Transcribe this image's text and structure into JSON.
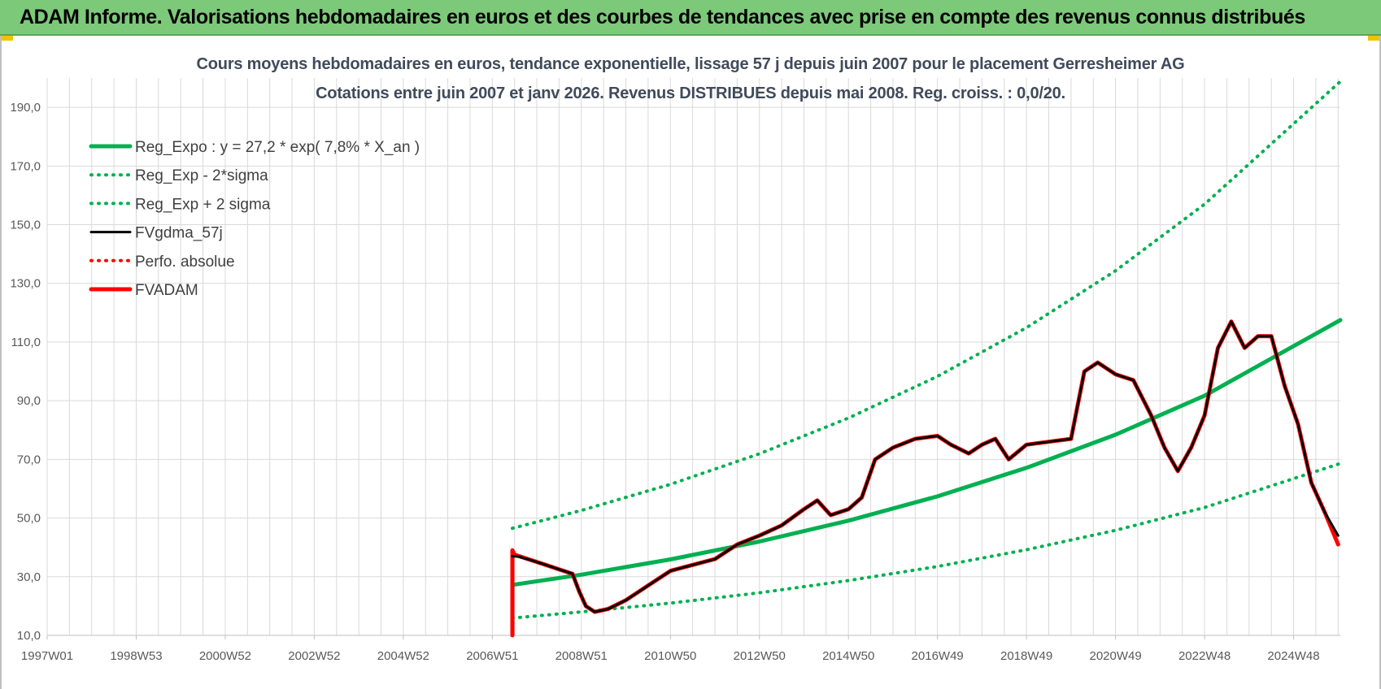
{
  "banner": {
    "title": "ADAM Informe. Valorisations hebdomadaires en euros et des courbes de tendances avec prise en compte des revenus connus distribués"
  },
  "colors": {
    "banner_bg": "#7dc97a",
    "green": "#00b050",
    "red": "#ff0000",
    "black": "#000000",
    "grid": "#d9d9d9"
  },
  "chart_data": {
    "type": "line",
    "title_line1": "Cours moyens hebdomadaires en euros, tendance exponentielle, lissage 57 j depuis juin 2007 pour le placement Gerresheimer AG",
    "title_line2": "Cotations entre juin 2007 et janv 2026.  Revenus DISTRIBUES  depuis mai 2008. Reg.  croiss. : 0,0/20.",
    "xlabel": "",
    "ylabel": "",
    "ylim": [
      10,
      200
    ],
    "y_ticks": [
      "10,0",
      "30,0",
      "50,0",
      "70,0",
      "90,0",
      "110,0",
      "130,0",
      "150,0",
      "170,0",
      "190,0"
    ],
    "x_ticks": [
      "1997W01",
      "1998W53",
      "2000W52",
      "2002W52",
      "2004W52",
      "2006W51",
      "2008W51",
      "2010W50",
      "2012W50",
      "2014W50",
      "2016W49",
      "2018W49",
      "2020W49",
      "2022W48",
      "2024W48"
    ],
    "x_range": [
      1997.0,
      2026.05
    ],
    "grid": true,
    "legend_position": "top-left",
    "series": [
      {
        "name": "Reg_Expo : y = 27,2 * exp( 7,8% *  X_an )",
        "color": "#00b050",
        "style": "solid-thick",
        "x": [
          2007.45,
          2009,
          2011,
          2013,
          2015,
          2017,
          2019,
          2021,
          2023,
          2026.05
        ],
        "values": [
          27.2,
          30.7,
          35.9,
          42.0,
          49.1,
          57.4,
          67.1,
          78.4,
          91.7,
          117.5
        ]
      },
      {
        "name": "Reg_Exp - 2*sigma",
        "color": "#00b050",
        "style": "dotted",
        "x": [
          2007.45,
          2009,
          2011,
          2013,
          2015,
          2017,
          2019,
          2021,
          2023,
          2026.05
        ],
        "values": [
          15.9,
          18.0,
          21.0,
          24.5,
          28.7,
          33.5,
          39.2,
          45.8,
          53.6,
          68.6
        ]
      },
      {
        "name": "Reg_Exp + 2 sigma",
        "color": "#00b050",
        "style": "dotted",
        "x": [
          2007.45,
          2009,
          2011,
          2013,
          2015,
          2017,
          2019,
          2021,
          2023,
          2026.05
        ],
        "values": [
          46.5,
          52.6,
          61.5,
          71.9,
          84.1,
          98.3,
          114.9,
          134.3,
          157.0,
          198.8
        ]
      },
      {
        "name": "FVgdma_57j",
        "color": "#000000",
        "style": "solid-medium",
        "x": [
          2007.45,
          2007.6,
          2007.9,
          2008.2,
          2008.5,
          2008.8,
          2008.95,
          2009.1,
          2009.3,
          2009.6,
          2010.0,
          2010.5,
          2011.0,
          2011.5,
          2012.0,
          2012.5,
          2013.0,
          2013.5,
          2014.0,
          2014.3,
          2014.6,
          2015.0,
          2015.3,
          2015.6,
          2016.0,
          2016.5,
          2017.0,
          2017.3,
          2017.7,
          2018.0,
          2018.3,
          2018.6,
          2019.0,
          2019.5,
          2020.0,
          2020.3,
          2020.6,
          2021.0,
          2021.4,
          2021.8,
          2022.1,
          2022.4,
          2022.7,
          2023.0,
          2023.3,
          2023.6,
          2023.9,
          2024.2,
          2024.5,
          2024.8,
          2025.1,
          2025.4,
          2025.7,
          2026.0
        ],
        "values": [
          37.0,
          36.8,
          35.5,
          34.0,
          32.5,
          31.0,
          25.0,
          20.0,
          18.0,
          19.0,
          22.0,
          27.0,
          32.0,
          34.0,
          36.0,
          41.0,
          44.0,
          47.5,
          53.0,
          56.0,
          51.0,
          53.0,
          57.0,
          70.0,
          74.0,
          77.0,
          78.0,
          75.0,
          72.0,
          75.0,
          77.0,
          70.0,
          75.0,
          76.0,
          77.0,
          100.0,
          103.0,
          99.0,
          97.0,
          85.0,
          74.0,
          66.0,
          74.0,
          85.0,
          108.0,
          117.0,
          108.0,
          112.0,
          112.0,
          95.0,
          82.0,
          62.0,
          52.0,
          44.0
        ]
      },
      {
        "name": "Perfo. absolue",
        "color": "#ff0000",
        "style": "dotted",
        "x": [],
        "values": []
      },
      {
        "name": "FVADAM",
        "color": "#ff0000",
        "style": "solid-thick",
        "x": [
          2007.45,
          2007.45,
          2007.5,
          2007.6,
          2007.9,
          2008.2,
          2008.5,
          2008.8,
          2008.95,
          2009.1,
          2009.3,
          2009.6,
          2010.0,
          2010.5,
          2011.0,
          2011.5,
          2012.0,
          2012.5,
          2013.0,
          2013.5,
          2014.0,
          2014.3,
          2014.6,
          2015.0,
          2015.3,
          2015.6,
          2016.0,
          2016.5,
          2017.0,
          2017.3,
          2017.7,
          2018.0,
          2018.3,
          2018.6,
          2019.0,
          2019.5,
          2020.0,
          2020.3,
          2020.6,
          2021.0,
          2021.4,
          2021.8,
          2022.1,
          2022.4,
          2022.7,
          2023.0,
          2023.3,
          2023.6,
          2023.9,
          2024.2,
          2024.5,
          2024.8,
          2025.1,
          2025.4,
          2025.7,
          2026.0
        ],
        "values": [
          10.0,
          39.0,
          37.5,
          37.0,
          35.5,
          34.0,
          32.5,
          31.0,
          25.0,
          20.0,
          18.0,
          19.0,
          22.0,
          27.0,
          32.0,
          34.0,
          36.0,
          41.0,
          44.0,
          47.5,
          53.0,
          56.0,
          51.0,
          53.0,
          57.0,
          70.0,
          74.0,
          77.0,
          78.0,
          75.0,
          72.0,
          75.0,
          77.0,
          70.0,
          75.0,
          76.0,
          77.0,
          100.0,
          103.0,
          99.0,
          97.0,
          85.0,
          74.0,
          66.0,
          74.0,
          85.0,
          108.0,
          117.0,
          108.0,
          112.0,
          112.0,
          95.0,
          82.0,
          62.0,
          52.0,
          41.0
        ]
      }
    ]
  }
}
